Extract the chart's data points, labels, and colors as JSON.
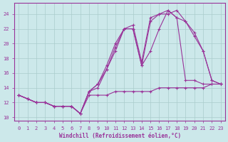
{
  "xlabel": "Windchill (Refroidissement éolien,°C)",
  "bg_color": "#cce8ea",
  "grid_color": "#aacccc",
  "line_color": "#993399",
  "xlim": [
    0,
    23
  ],
  "ylim": [
    10,
    25
  ],
  "yticks": [
    10,
    12,
    14,
    16,
    18,
    20,
    22,
    24
  ],
  "xticks": [
    0,
    1,
    2,
    3,
    4,
    5,
    6,
    7,
    8,
    9,
    10,
    11,
    12,
    13,
    14,
    15,
    16,
    17,
    18,
    19,
    20,
    21,
    22,
    23
  ],
  "series": [
    {
      "x": [
        0,
        1,
        2,
        3,
        4,
        5,
        6,
        7,
        8,
        9,
        10,
        11,
        12,
        13,
        14,
        15,
        16,
        17,
        18,
        19,
        20,
        21,
        22,
        23
      ],
      "y": [
        13,
        12.5,
        12,
        12,
        11.5,
        11.5,
        11.5,
        10.5,
        13.0,
        13.0,
        13.0,
        13.5,
        13.5,
        13.5,
        13.5,
        13.5,
        14.0,
        14.0,
        14.0,
        14.0,
        14.0,
        14.0,
        14.5,
        14.5
      ]
    },
    {
      "x": [
        0,
        1,
        2,
        3,
        4,
        5,
        6,
        7,
        8,
        9,
        10,
        11,
        12,
        13,
        14,
        15,
        16,
        17,
        18,
        19,
        20,
        21,
        22,
        23
      ],
      "y": [
        13,
        12.5,
        12,
        12,
        11.5,
        11.5,
        11.5,
        10.5,
        13.5,
        14.0,
        16.5,
        19.0,
        22.0,
        22.0,
        17.0,
        19.0,
        22.0,
        24.5,
        23.5,
        23.0,
        21.5,
        19.0,
        15.0,
        14.5
      ]
    },
    {
      "x": [
        0,
        1,
        2,
        3,
        4,
        5,
        6,
        7,
        8,
        9,
        10,
        11,
        12,
        13,
        14,
        15,
        16,
        17,
        18,
        19,
        20,
        21,
        22,
        23
      ],
      "y": [
        13,
        12.5,
        12,
        12,
        11.5,
        11.5,
        11.5,
        10.5,
        13.5,
        14.5,
        16.5,
        19.5,
        22.0,
        22.5,
        17.5,
        23.5,
        24.0,
        24.5,
        23.5,
        15.0,
        15.0,
        14.5,
        14.5,
        14.5
      ]
    },
    {
      "x": [
        0,
        1,
        2,
        3,
        4,
        5,
        6,
        7,
        8,
        9,
        10,
        11,
        12,
        13,
        14,
        15,
        16,
        17,
        18,
        19,
        20,
        21,
        22,
        23
      ],
      "y": [
        13,
        12.5,
        12,
        12,
        11.5,
        11.5,
        11.5,
        10.5,
        13.5,
        14.5,
        17.0,
        20.0,
        22.0,
        22.0,
        17.0,
        23.0,
        24.0,
        24.0,
        24.5,
        23.0,
        21.0,
        19.0,
        15.0,
        14.5
      ]
    }
  ]
}
